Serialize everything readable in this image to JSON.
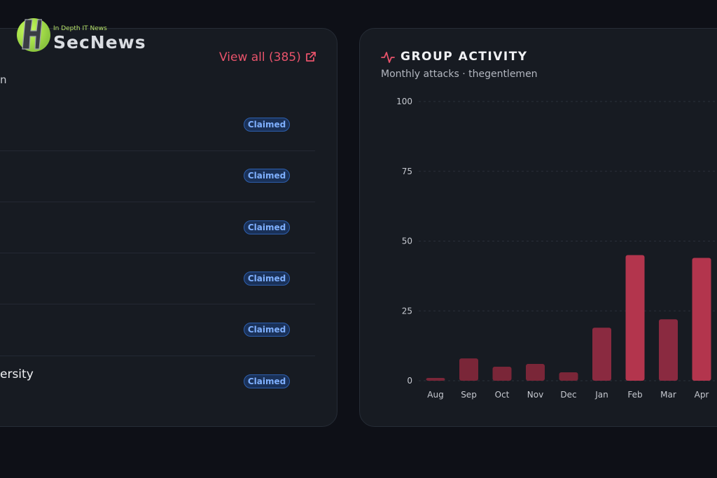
{
  "logo": {
    "tagline": "In Depth IT News",
    "name": "SecNews"
  },
  "left_panel": {
    "view_all": "View all (385)",
    "subtitle_fragment": "n",
    "rows": [
      {
        "name": "",
        "status": "Claimed"
      },
      {
        "name": "",
        "status": "Claimed"
      },
      {
        "name": "",
        "status": "Claimed"
      },
      {
        "name": "",
        "status": "Claimed"
      },
      {
        "name": "",
        "status": "Claimed"
      },
      {
        "name": "ersity",
        "status": "Claimed"
      }
    ]
  },
  "group_activity": {
    "title": "GROUP ACTIVITY",
    "subtitle": "Monthly attacks · thegentlemen"
  },
  "colors": {
    "accent": "#e8536b",
    "bar_dark": "#7a2638",
    "bar_bright": "#b3354d",
    "badge_text": "#7fb0ff"
  },
  "chart_data": {
    "type": "bar",
    "categories": [
      "Aug",
      "Sep",
      "Oct",
      "Nov",
      "Dec",
      "Jan",
      "Feb",
      "Mar",
      "Apr"
    ],
    "values": [
      1,
      8,
      5,
      6,
      3,
      19,
      45,
      22,
      44
    ],
    "yticks": [
      0,
      25,
      50,
      75,
      100
    ],
    "ylim": [
      0,
      100
    ],
    "grid": true
  }
}
